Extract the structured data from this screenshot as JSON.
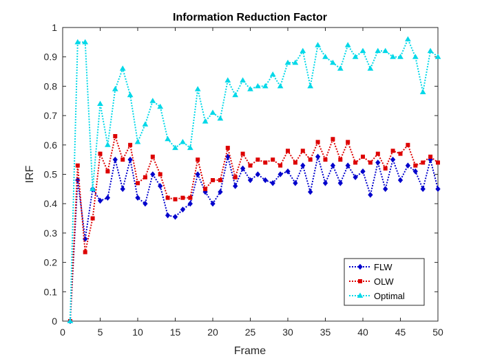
{
  "chart_data": {
    "type": "line",
    "title": "Information Reduction Factor",
    "xlabel": "Frame",
    "ylabel": "IRF",
    "xlim": [
      0,
      50
    ],
    "ylim": [
      0,
      1
    ],
    "xticks": [
      0,
      5,
      10,
      15,
      20,
      25,
      30,
      35,
      40,
      45,
      50
    ],
    "yticks": [
      0,
      0.1,
      0.2,
      0.3,
      0.4,
      0.5,
      0.6,
      0.7,
      0.8,
      0.9,
      1
    ],
    "grid": false,
    "legend_position": "bottom-right",
    "x": [
      1,
      2,
      3,
      4,
      5,
      6,
      7,
      8,
      9,
      10,
      11,
      12,
      13,
      14,
      15,
      16,
      17,
      18,
      19,
      20,
      21,
      22,
      23,
      24,
      25,
      26,
      27,
      28,
      29,
      30,
      31,
      32,
      33,
      34,
      35,
      36,
      37,
      38,
      39,
      40,
      41,
      42,
      43,
      44,
      45,
      46,
      47,
      48,
      49,
      50
    ],
    "series": [
      {
        "name": "FLW",
        "color": "#0000cc",
        "marker": "diamond",
        "values": [
          0,
          0.48,
          0.28,
          0.45,
          0.41,
          0.42,
          0.55,
          0.45,
          0.55,
          0.42,
          0.4,
          0.5,
          0.46,
          0.36,
          0.355,
          0.38,
          0.4,
          0.5,
          0.44,
          0.4,
          0.44,
          0.56,
          0.46,
          0.52,
          0.48,
          0.5,
          0.48,
          0.47,
          0.5,
          0.51,
          0.47,
          0.53,
          0.44,
          0.56,
          0.47,
          0.53,
          0.47,
          0.53,
          0.49,
          0.51,
          0.43,
          0.54,
          0.45,
          0.55,
          0.48,
          0.53,
          0.51,
          0.45,
          0.55,
          0.45
        ]
      },
      {
        "name": "OLW",
        "color": "#dd0000",
        "marker": "square",
        "values": [
          0,
          0.53,
          0.235,
          0.35,
          0.57,
          0.51,
          0.63,
          0.55,
          0.6,
          0.47,
          0.49,
          0.56,
          0.5,
          0.42,
          0.415,
          0.42,
          0.42,
          0.55,
          0.45,
          0.48,
          0.48,
          0.59,
          0.49,
          0.57,
          0.53,
          0.55,
          0.54,
          0.55,
          0.53,
          0.58,
          0.54,
          0.58,
          0.55,
          0.61,
          0.55,
          0.62,
          0.55,
          0.61,
          0.54,
          0.56,
          0.54,
          0.57,
          0.52,
          0.58,
          0.57,
          0.6,
          0.53,
          0.54,
          0.56,
          0.54
        ]
      },
      {
        "name": "Optimal",
        "color": "#00d8e8",
        "marker": "triangle",
        "values": [
          0,
          0.95,
          0.95,
          0.45,
          0.74,
          0.6,
          0.79,
          0.86,
          0.77,
          0.61,
          0.67,
          0.75,
          0.73,
          0.62,
          0.59,
          0.61,
          0.59,
          0.79,
          0.68,
          0.71,
          0.69,
          0.82,
          0.77,
          0.82,
          0.79,
          0.8,
          0.8,
          0.84,
          0.8,
          0.88,
          0.88,
          0.92,
          0.8,
          0.94,
          0.9,
          0.88,
          0.86,
          0.94,
          0.9,
          0.92,
          0.86,
          0.92,
          0.92,
          0.9,
          0.9,
          0.96,
          0.9,
          0.78,
          0.92,
          0.9
        ]
      }
    ]
  }
}
